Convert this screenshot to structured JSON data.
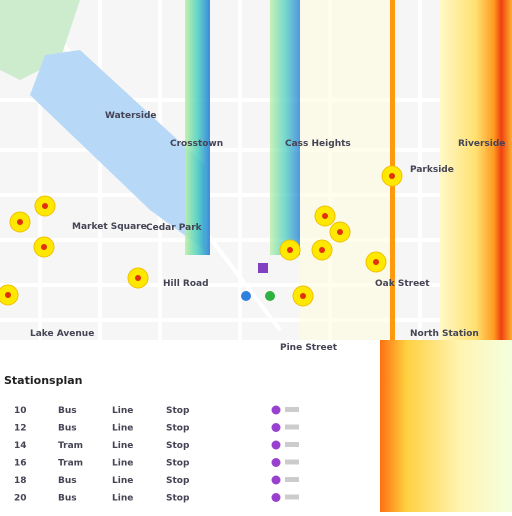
{
  "map": {
    "labels": [
      "Waterside",
      "Crosstown",
      "Cass Heights",
      "Riverside",
      "Market Square",
      "Cedar Park",
      "Parkside",
      "Hill Road",
      "Oak Street",
      "Lake Avenue",
      "Pine Street",
      "North Station"
    ]
  },
  "panel": {
    "title": "Stationsplan",
    "rows": [
      [
        "10",
        "Bus",
        "Line",
        "Stop"
      ],
      [
        "12",
        "Bus",
        "Line",
        "Stop"
      ],
      [
        "14",
        "Tram",
        "Line",
        "Stop"
      ],
      [
        "16",
        "Tram",
        "Line",
        "Stop"
      ],
      [
        "18",
        "Bus",
        "Line",
        "Stop"
      ],
      [
        "20",
        "Bus",
        "Line",
        "Stop"
      ]
    ]
  }
}
